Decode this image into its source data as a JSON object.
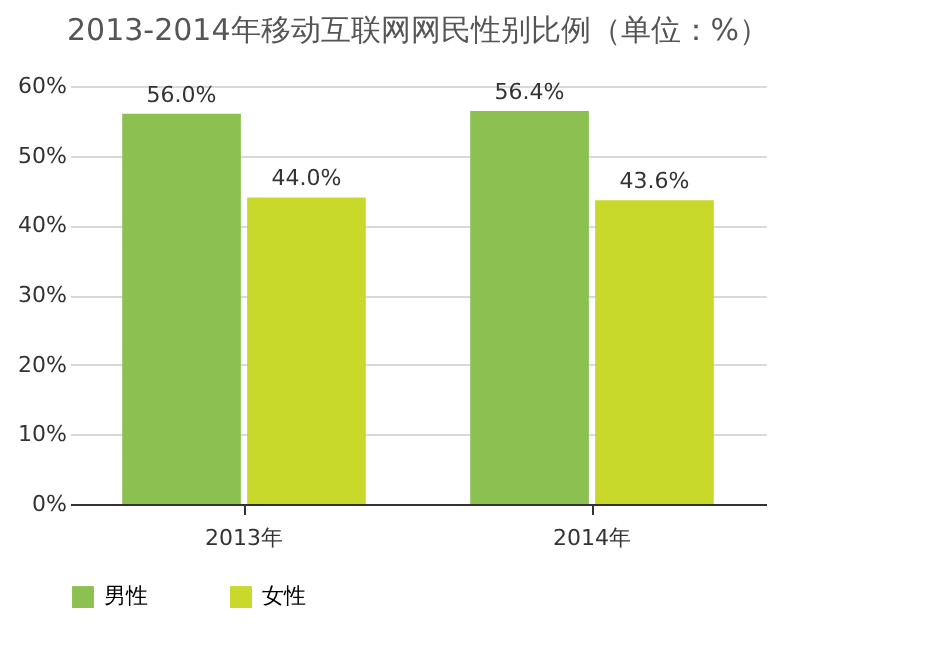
{
  "chart_data": {
    "type": "bar",
    "title": "2013-2014年移动互联网网民性别比例（单位：%）",
    "categories": [
      "2013年",
      "2014年"
    ],
    "series": [
      {
        "name": "男性",
        "color": "#8cc152",
        "values": [
          56.0,
          56.4
        ],
        "value_labels": [
          "56.0%",
          "56.4%"
        ]
      },
      {
        "name": "女性",
        "color": "#c8d92b",
        "values": [
          44.0,
          43.6
        ],
        "value_labels": [
          "44.0%",
          "43.6%"
        ]
      }
    ],
    "ylim": [
      0,
      60
    ],
    "yticks": [
      {
        "value": 0,
        "label": "0%"
      },
      {
        "value": 10,
        "label": "10%"
      },
      {
        "value": 20,
        "label": "20%"
      },
      {
        "value": 30,
        "label": "30%"
      },
      {
        "value": 40,
        "label": "40%"
      },
      {
        "value": 50,
        "label": "50%"
      },
      {
        "value": 60,
        "label": "60%"
      }
    ],
    "grid": "y",
    "legend": "bottom"
  }
}
